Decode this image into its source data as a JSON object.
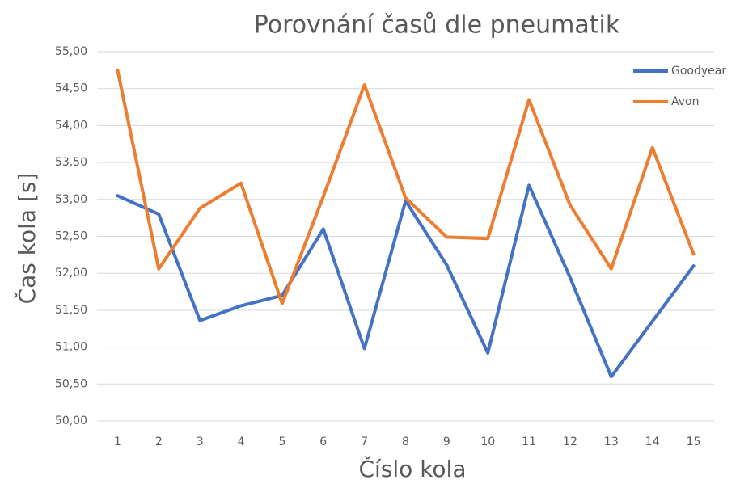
{
  "chart_data": {
    "type": "line",
    "title": "Porovnání časů dle pneumatik",
    "x_label": "Číslo kola",
    "y_label": "Čas kola [s]",
    "categories": [
      "1",
      "2",
      "3",
      "4",
      "5",
      "6",
      "7",
      "8",
      "9",
      "10",
      "11",
      "12",
      "13",
      "14",
      "15"
    ],
    "series": [
      {
        "name": "Goodyear",
        "color": "#4472c4",
        "values": [
          53.05,
          52.8,
          51.36,
          51.56,
          51.7,
          52.6,
          50.98,
          52.98,
          52.11,
          50.92,
          53.19,
          51.94,
          50.6,
          51.35,
          52.1
        ]
      },
      {
        "name": "Avon",
        "color": "#ed7d31",
        "values": [
          54.75,
          52.06,
          52.88,
          53.22,
          51.59,
          53.04,
          54.55,
          53.02,
          52.49,
          52.47,
          54.35,
          52.92,
          52.06,
          53.7,
          52.26
        ]
      }
    ],
    "ylim": [
      50,
      55
    ],
    "yticks": [
      {
        "value": 50,
        "label": "50,00"
      },
      {
        "value": 50.5,
        "label": "50,50"
      },
      {
        "value": 51,
        "label": "51,00"
      },
      {
        "value": 51.5,
        "label": "51,50"
      },
      {
        "value": 52,
        "label": "52,00"
      },
      {
        "value": 52.5,
        "label": "52,50"
      },
      {
        "value": 53,
        "label": "53,00"
      },
      {
        "value": 53.5,
        "label": "53,50"
      },
      {
        "value": 54,
        "label": "54,00"
      },
      {
        "value": 54.5,
        "label": "54,50"
      },
      {
        "value": 55,
        "label": "55,00"
      }
    ],
    "grid": true,
    "legend": "top-right"
  }
}
